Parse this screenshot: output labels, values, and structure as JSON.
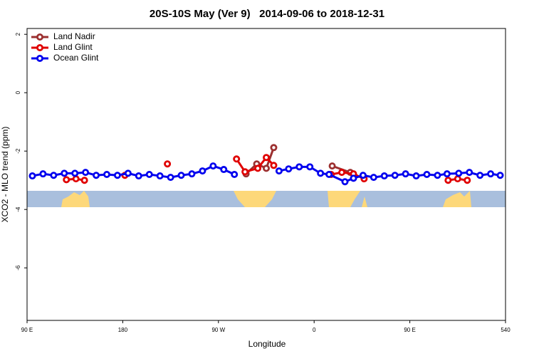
{
  "chart_data": {
    "type": "line",
    "title": "20S-10S May (Ver 9)   2014-09-06 to 2018-12-31",
    "x_label": "Longitude",
    "y_label": "XCO2 - MLO trend (ppm)",
    "xlim": [
      90,
      540
    ],
    "ylim": [
      -7.8,
      2.2
    ],
    "xticks": [
      {
        "value": 90,
        "label": "90 E"
      },
      180,
      {
        "value": 270,
        "label": "90 W"
      },
      {
        "value": 360,
        "label": "0"
      },
      {
        "value": 450,
        "label": "90 E"
      },
      540
    ],
    "yticks": [
      2,
      0,
      -2,
      -4,
      -6
    ],
    "legend": "top-left",
    "series": [
      {
        "name": "Land Nadir",
        "color": "#9c3030",
        "x": [
          296,
          306,
          315,
          322,
          350,
          377,
          394
        ],
        "values": [
          -2.78,
          -2.44,
          -2.59,
          -1.88,
          null,
          -2.51,
          -2.73
        ]
      },
      {
        "name": "Land Glint",
        "color": "#e00000",
        "x": [
          127,
          136,
          144,
          160,
          182,
          200,
          222,
          250,
          287,
          295,
          307,
          315,
          322,
          350,
          376,
          386,
          397,
          407,
          450,
          486,
          495,
          504
        ],
        "values": [
          -2.98,
          -2.95,
          -3.0,
          null,
          -2.83,
          null,
          -2.44,
          null,
          -2.27,
          -2.71,
          -2.59,
          -2.22,
          -2.49,
          null,
          -2.8,
          -2.73,
          -2.78,
          -2.95,
          null,
          -3.0,
          -2.95,
          -3.0
        ]
      },
      {
        "name": "Ocean Glint",
        "color": "#0000ee",
        "x": [
          95,
          105,
          115,
          125,
          135,
          145,
          155,
          165,
          175,
          185,
          195,
          205,
          215,
          225,
          235,
          245,
          255,
          265,
          275,
          285,
          305,
          327,
          336,
          346,
          356,
          366,
          374,
          389,
          397,
          406,
          416,
          426,
          436,
          446,
          456,
          466,
          476,
          485,
          496,
          506,
          516,
          526,
          535
        ],
        "values": [
          -2.85,
          -2.78,
          -2.83,
          -2.76,
          -2.76,
          -2.73,
          -2.83,
          -2.8,
          -2.83,
          -2.76,
          -2.85,
          -2.8,
          -2.85,
          -2.9,
          -2.83,
          -2.78,
          -2.68,
          -2.51,
          -2.63,
          -2.8,
          null,
          -2.68,
          -2.61,
          -2.54,
          -2.54,
          -2.76,
          -2.8,
          -3.05,
          -2.93,
          -2.83,
          -2.9,
          -2.85,
          -2.83,
          -2.78,
          -2.85,
          -2.8,
          -2.83,
          -2.78,
          -2.76,
          -2.73,
          -2.83,
          -2.78,
          -2.83
        ]
      }
    ]
  }
}
